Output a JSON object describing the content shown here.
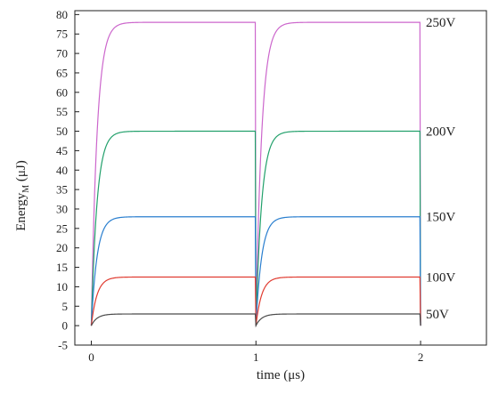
{
  "chart_data": {
    "type": "line",
    "xlabel": "time (μs)",
    "ylabel_main": "Energy",
    "ylabel_subscript": "M",
    "ylabel_unit": " (μJ)",
    "xlim": [
      -0.1,
      2.4
    ],
    "ylim": [
      -5,
      81
    ],
    "xticks": [
      0,
      1,
      2
    ],
    "yticks": [
      -5,
      0,
      5,
      10,
      15,
      20,
      25,
      30,
      35,
      40,
      45,
      50,
      55,
      60,
      65,
      70,
      75,
      80
    ],
    "grid": false,
    "pulse_period_us": 1.0,
    "rise_time_constant_us": 0.035,
    "series": [
      {
        "name": "250V",
        "steady_value": 78,
        "color": "#cc66cc"
      },
      {
        "name": "200V",
        "steady_value": 50,
        "color": "#22a06b"
      },
      {
        "name": "150V",
        "steady_value": 28,
        "color": "#2a7fcf"
      },
      {
        "name": "100V",
        "steady_value": 12.5,
        "color": "#e03c31"
      },
      {
        "name": "50V",
        "steady_value": 3,
        "color": "#4a4a4a"
      }
    ]
  }
}
